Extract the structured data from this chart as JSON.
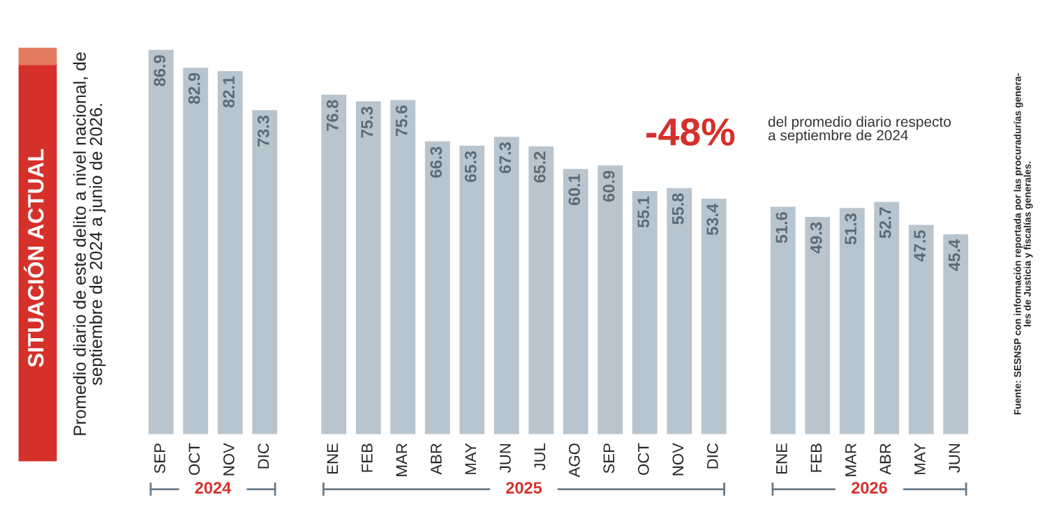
{
  "chart_data": {
    "type": "bar",
    "title": "SITUACIÓN ACTUAL",
    "subtitle": "Promedio diario de este delito a nivel nacional, de\nseptiembre de 2024 a junio de 2026.",
    "categories": [
      "SEP",
      "OCT",
      "NOV",
      "DIC",
      null,
      "ENE",
      "FEB",
      "MAR",
      "ABR",
      "MAY",
      "JUN",
      "JUL",
      "AGO",
      "SEP",
      "OCT",
      "NOV",
      "DIC",
      null,
      "ENE",
      "FEB",
      "MAR",
      "ABR",
      "MAY",
      "JUN"
    ],
    "values": [
      86.9,
      82.9,
      82.1,
      73.3,
      null,
      76.8,
      75.3,
      75.6,
      66.3,
      65.3,
      67.3,
      65.2,
      60.1,
      60.9,
      55.1,
      55.8,
      53.4,
      null,
      51.6,
      49.3,
      51.3,
      52.7,
      47.5,
      45.4
    ],
    "color": "#b9c5ce",
    "data_labels": true,
    "annotations": [
      "2024",
      "2025",
      "2026",
      "-48%",
      "del promedio diario respecto\na septiembre de 2024",
      "Fuente: SESNSP con información reportada por las procuradurías genera-\nles de Justicia y fiscalías generales."
    ]
  }
}
